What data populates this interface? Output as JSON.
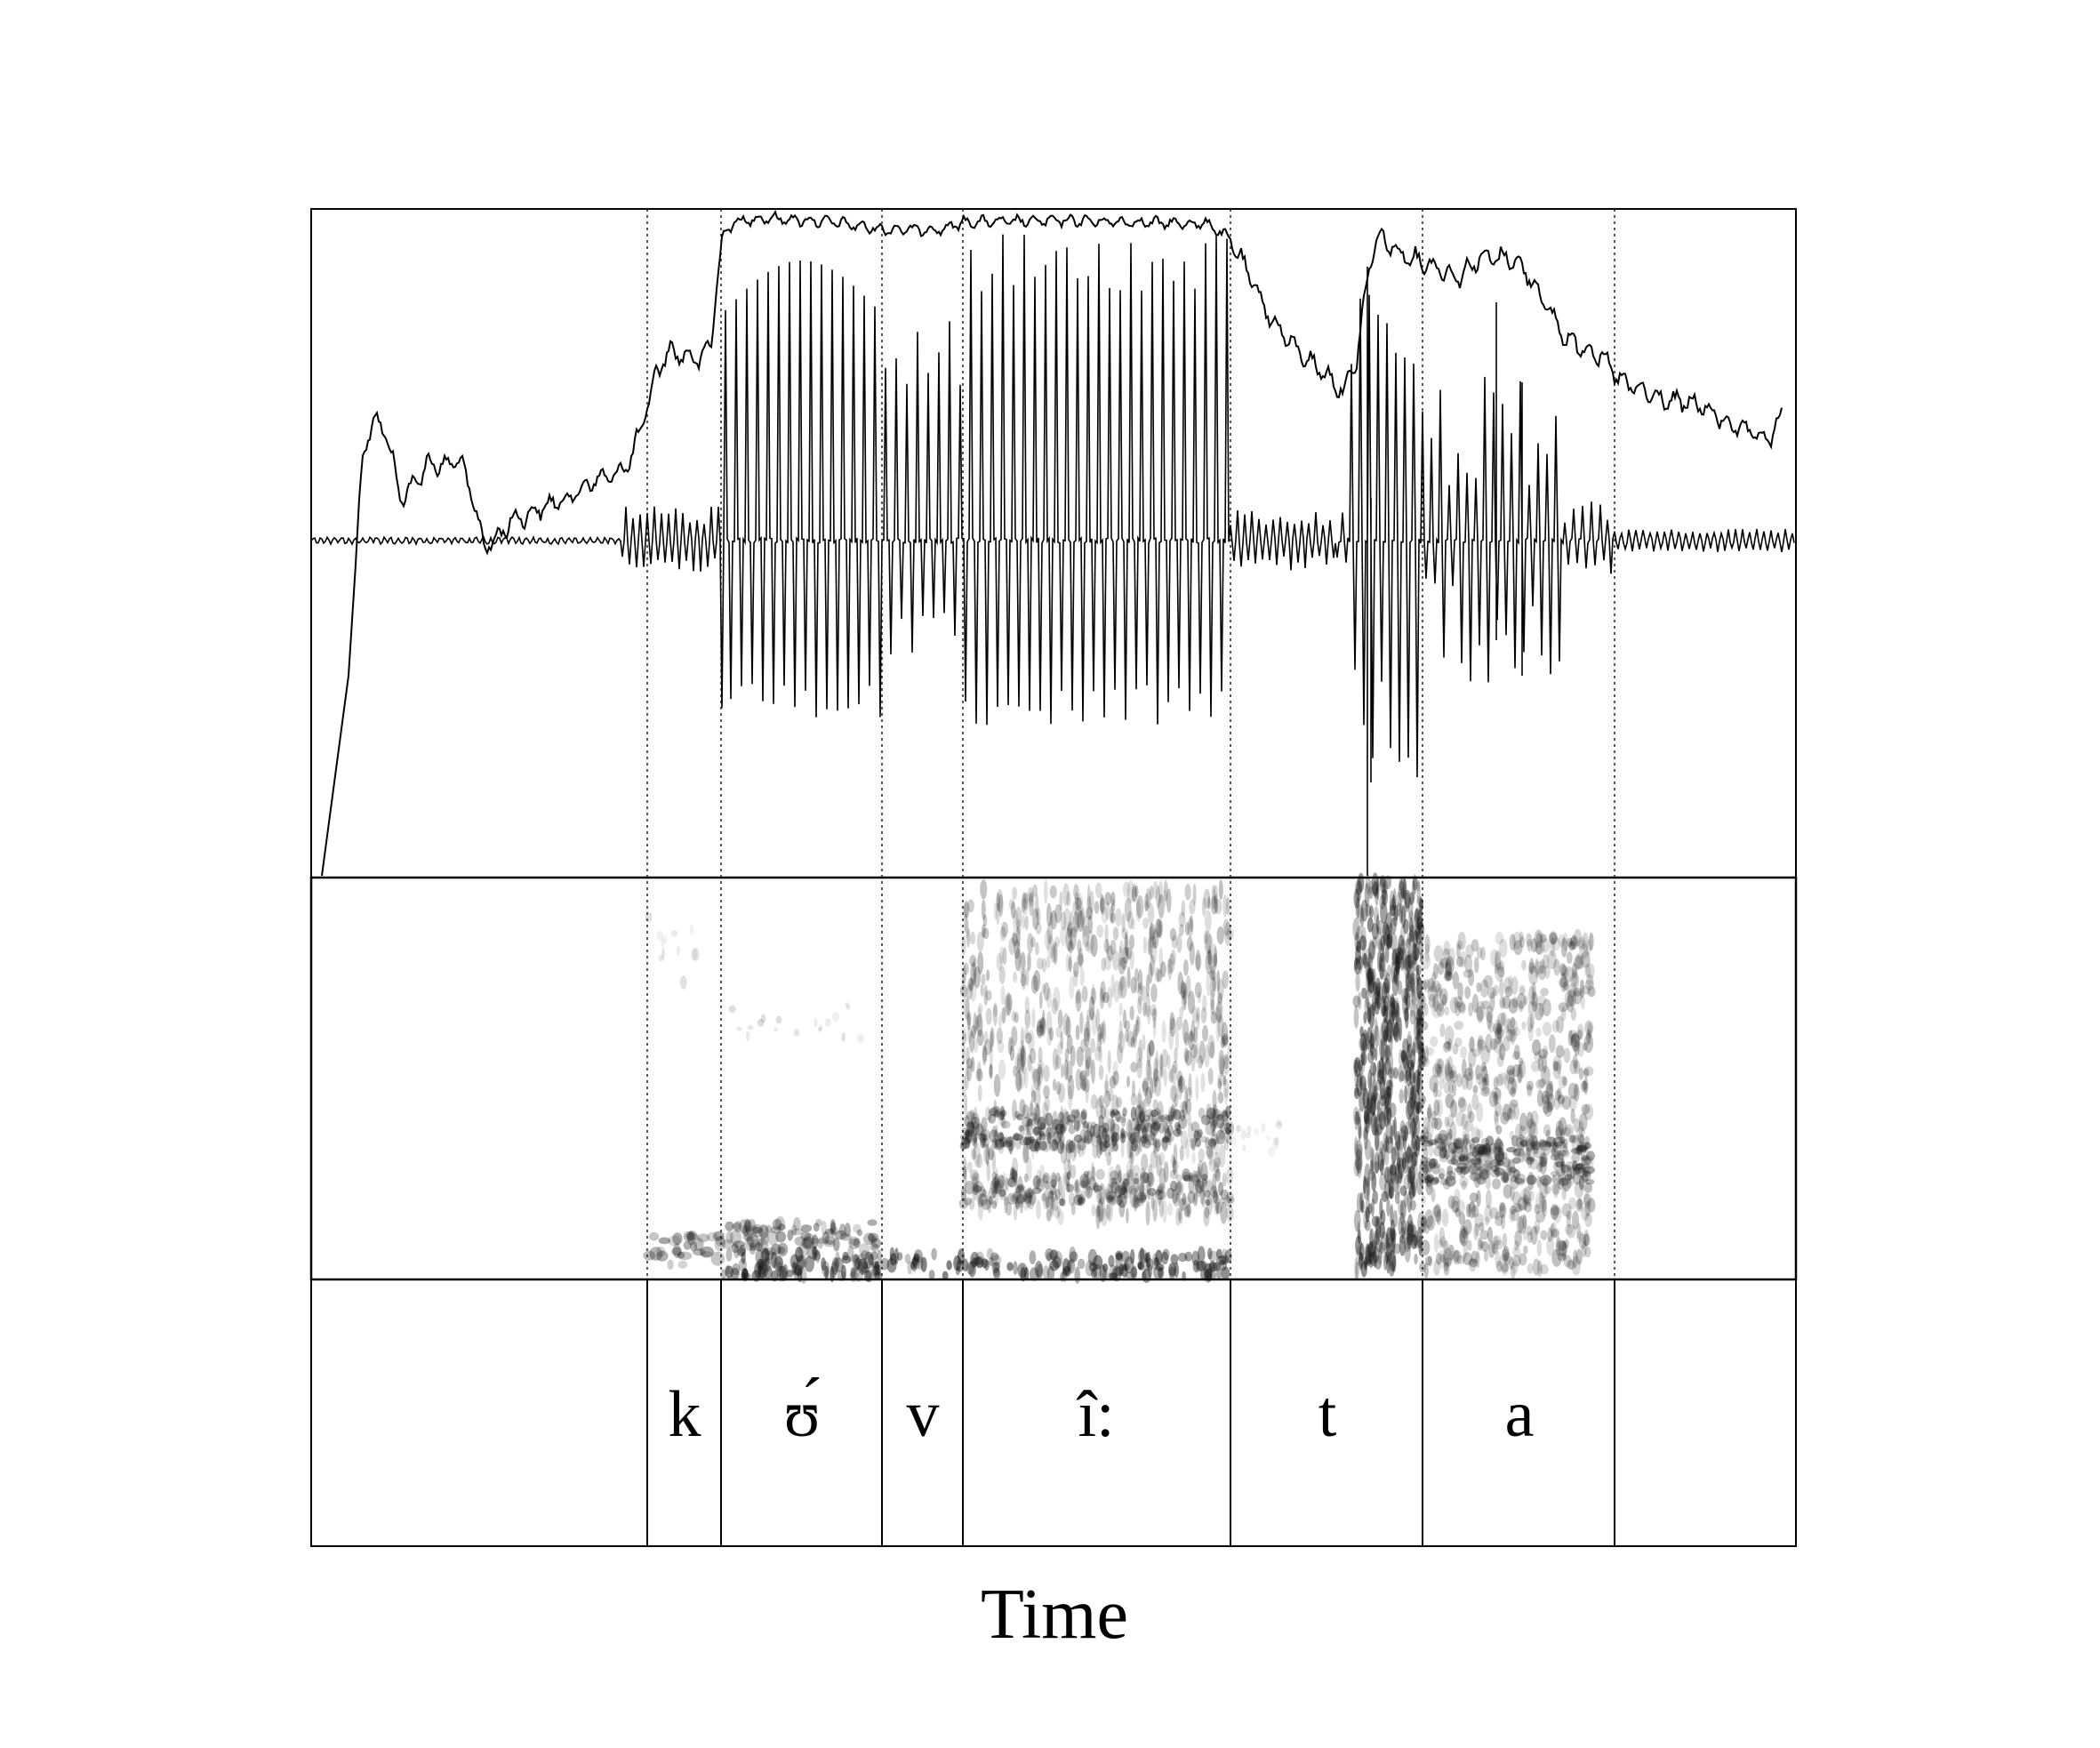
{
  "figure": {
    "xlabel": "Time",
    "segments": [
      {
        "label": ""
      },
      {
        "label": "k"
      },
      {
        "label": "ʊ́"
      },
      {
        "label": "v"
      },
      {
        "label": "î:"
      },
      {
        "label": "t"
      },
      {
        "label": "a"
      },
      {
        "label": ""
      }
    ],
    "colors": {
      "ink": "#000000",
      "background": "#ffffff",
      "spectrogram_dark": "#1a1a1a"
    }
  }
}
